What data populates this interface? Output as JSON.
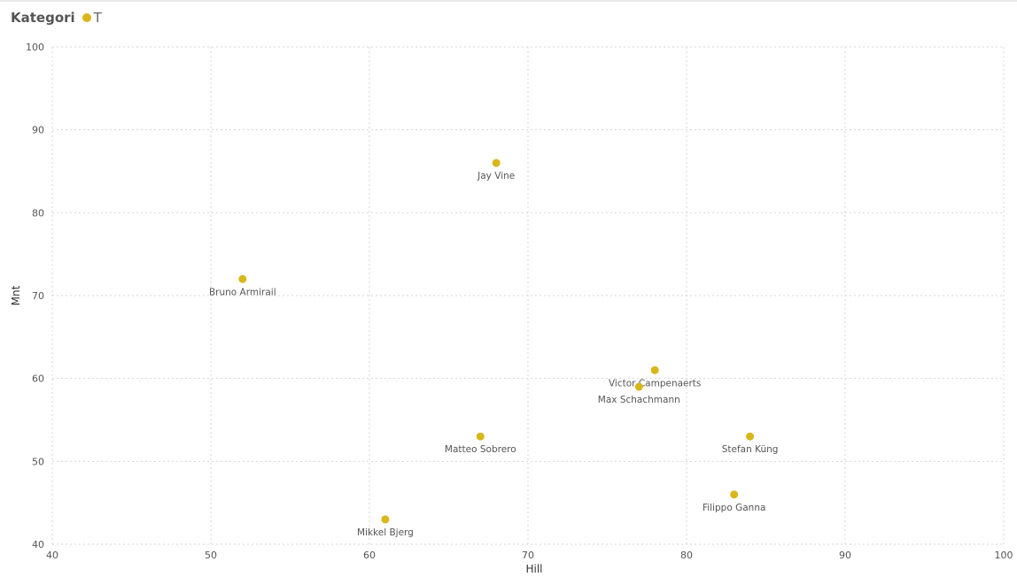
{
  "legend": {
    "title": "Kategori",
    "items": [
      {
        "label": "T",
        "color": "#d9b61a"
      }
    ]
  },
  "chart_data": {
    "type": "scatter",
    "title": "",
    "xlabel": "Hill",
    "ylabel": "Mnt",
    "xlim": [
      40,
      100
    ],
    "ylim": [
      40,
      100
    ],
    "xticks": [
      40,
      50,
      60,
      70,
      80,
      90,
      100
    ],
    "yticks": [
      40,
      50,
      60,
      70,
      80,
      90,
      100
    ],
    "grid": true,
    "legend_position": "top-left",
    "series": [
      {
        "name": "T",
        "color": "#d9b61a",
        "points": [
          {
            "label": "Jay Vine",
            "x": 68,
            "y": 86
          },
          {
            "label": "Bruno Armirail",
            "x": 52,
            "y": 72
          },
          {
            "label": "Victor Campenaerts",
            "x": 78,
            "y": 61
          },
          {
            "label": "Max Schachmann",
            "x": 77,
            "y": 59
          },
          {
            "label": "Matteo Sobrero",
            "x": 67,
            "y": 53
          },
          {
            "label": "Stefan Küng",
            "x": 84,
            "y": 53
          },
          {
            "label": "Filippo Ganna",
            "x": 83,
            "y": 46
          },
          {
            "label": "Mikkel Bjerg",
            "x": 61,
            "y": 43
          }
        ]
      }
    ]
  }
}
